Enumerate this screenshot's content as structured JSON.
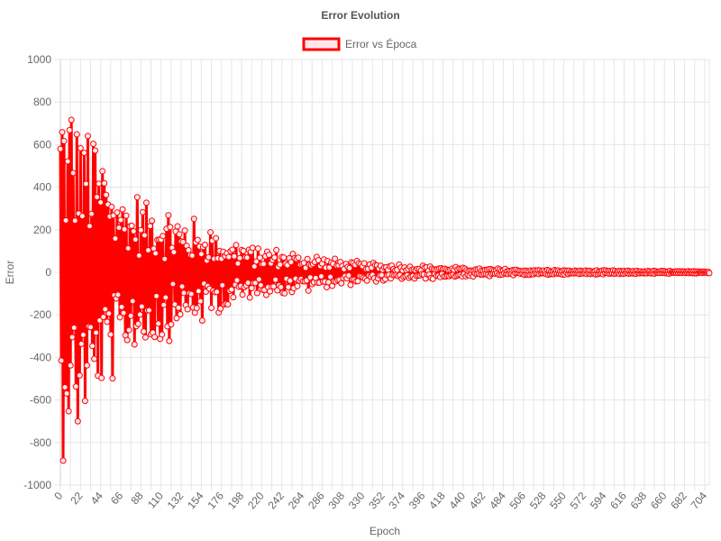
{
  "chart_data": {
    "type": "line",
    "title": "Error Evolution",
    "xlabel": "Epoch",
    "ylabel": "Error",
    "xlim": [
      0,
      709
    ],
    "ylim": [
      -1000,
      1000
    ],
    "y_ticks": [
      -1000,
      -800,
      -600,
      -400,
      -200,
      0,
      200,
      400,
      600,
      800,
      1000
    ],
    "x_tick_step": 22,
    "grid": true,
    "legend_position": "top-center",
    "series": [
      {
        "name": "Error vs Época",
        "color": "#ff0000",
        "fill_color": "#fde8ee",
        "envelope": [
          {
            "x": 0,
            "amp": 920
          },
          {
            "x": 20,
            "amp": 830
          },
          {
            "x": 44,
            "amp": 660
          },
          {
            "x": 66,
            "amp": 450
          },
          {
            "x": 88,
            "amp": 380
          },
          {
            "x": 110,
            "amp": 360
          },
          {
            "x": 132,
            "amp": 270
          },
          {
            "x": 154,
            "amp": 250
          },
          {
            "x": 176,
            "amp": 200
          },
          {
            "x": 198,
            "amp": 150
          },
          {
            "x": 220,
            "amp": 120
          },
          {
            "x": 242,
            "amp": 110
          },
          {
            "x": 264,
            "amp": 100
          },
          {
            "x": 286,
            "amp": 80
          },
          {
            "x": 308,
            "amp": 65
          },
          {
            "x": 330,
            "amp": 55
          },
          {
            "x": 352,
            "amp": 45
          },
          {
            "x": 374,
            "amp": 40
          },
          {
            "x": 396,
            "amp": 35
          },
          {
            "x": 418,
            "amp": 30
          },
          {
            "x": 440,
            "amp": 25
          },
          {
            "x": 462,
            "amp": 20
          },
          {
            "x": 506,
            "amp": 15
          },
          {
            "x": 550,
            "amp": 12
          },
          {
            "x": 594,
            "amp": 10
          },
          {
            "x": 638,
            "amp": 8
          },
          {
            "x": 682,
            "amp": 6
          },
          {
            "x": 709,
            "amp": 5
          }
        ]
      }
    ]
  }
}
